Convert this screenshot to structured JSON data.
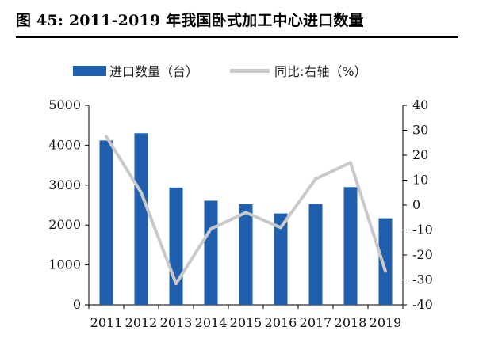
{
  "header": {
    "title": "图 45: 2011-2019 年我国卧式加工中心进口数量"
  },
  "colors": {
    "bar": "#1f5fae",
    "line": "#c9c9c9",
    "axis": "#000000"
  },
  "chart_data": {
    "type": "bar",
    "categories": [
      "2011",
      "2012",
      "2013",
      "2014",
      "2015",
      "2016",
      "2017",
      "2018",
      "2019"
    ],
    "series": [
      {
        "name": "进口数量（台）",
        "type": "bar",
        "axis": "left",
        "values": [
          4120,
          4300,
          2940,
          2610,
          2520,
          2290,
          2530,
          2950,
          2170
        ]
      },
      {
        "name": "同比:右轴（%）",
        "type": "line",
        "axis": "right",
        "values": [
          27.5,
          5,
          -31.5,
          -9.5,
          -3,
          -9,
          10.5,
          17,
          -26.5
        ]
      }
    ],
    "y_left": {
      "lim": [
        0,
        5000
      ],
      "ticks": [
        "0",
        "1000",
        "2000",
        "3000",
        "4000",
        "5000"
      ]
    },
    "y_right": {
      "lim": [
        -40,
        40
      ],
      "ticks": [
        "-40",
        "-30",
        "-20",
        "-10",
        "0",
        "10",
        "20",
        "30",
        "40"
      ]
    },
    "legend_position": "top",
    "grid": false
  }
}
